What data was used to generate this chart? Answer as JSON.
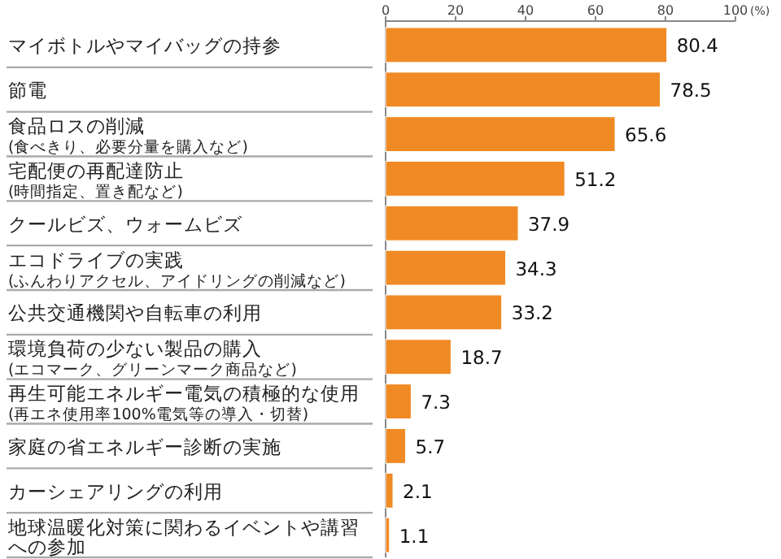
{
  "chart_data": {
    "type": "bar",
    "orientation": "horizontal",
    "xlabel": "(%)",
    "categories": [
      "マイボトルやマイバッグの持参",
      "節電",
      "食品ロスの削減(食べきり、必要分量を購入など)",
      "宅配便の再配達防止(時間指定、置き配など)",
      "クールビズ、ウォームビズ",
      "エコドライブの実践(ふんわりアクセル、アイドリングの削減など)",
      "公共交通機関や自転車の利用",
      "環境負荷の少ない製品の購入(エコマーク、グリーンマーク商品など)",
      "再生可能エネルギー電気の積極的な使用(再エネ使用率100%電気等の導入・切替)",
      "家庭の省エネルギー診断の実施",
      "カーシェアリングの利用",
      "地球温暖化対策に関わるイベントや講習への参加"
    ],
    "values": [
      80.4,
      78.5,
      65.6,
      51.2,
      37.9,
      34.3,
      33.2,
      18.7,
      7.3,
      5.7,
      2.1,
      1.1
    ],
    "color": "#f08a24",
    "xlim": [
      0,
      100
    ],
    "xticks": [
      0,
      20,
      40,
      60,
      80,
      100
    ],
    "data_labels": true,
    "grid": false
  }
}
